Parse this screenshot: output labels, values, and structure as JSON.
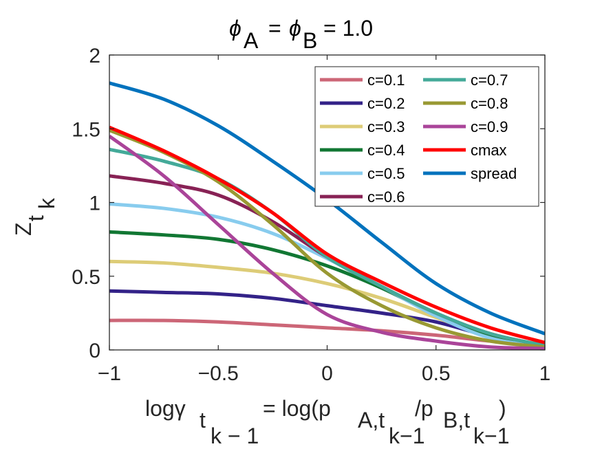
{
  "chart_data": {
    "type": "line",
    "title": {
      "symbol": "ϕ",
      "sub_a": "A",
      "eq": "=",
      "sub_b": "B",
      "value": "= 1.0"
    },
    "xlabel": {
      "part1": "logγ",
      "sub1": "t",
      "subsub1": "k − 1",
      "part2": "= log(p",
      "sub2": "A,t",
      "subsub2": "k−1",
      "part3": "/p",
      "sub3": "B,t",
      "subsub3": "k−1",
      "part4": ")"
    },
    "ylabel": {
      "main": "Z",
      "sub": "t",
      "subsub": "k"
    },
    "xlim": [
      -1,
      1
    ],
    "ylim": [
      0,
      2
    ],
    "xticks": [
      "−1",
      "−0.5",
      "0",
      "0.5",
      "1"
    ],
    "xtick_values": [
      -1,
      -0.5,
      0,
      0.5,
      1
    ],
    "yticks": [
      "0",
      "0.5",
      "1",
      "1.5",
      "2"
    ],
    "ytick_values": [
      0,
      0.5,
      1,
      1.5,
      2
    ],
    "legend_position": "top-right",
    "x": [
      -1,
      -0.75,
      -0.5,
      -0.25,
      0,
      0.25,
      0.5,
      0.75,
      1
    ],
    "series": [
      {
        "name": "c=0.1",
        "color": "#cc6677",
        "values": [
          0.2,
          0.2,
          0.19,
          0.17,
          0.15,
          0.13,
          0.1,
          0.06,
          0.03
        ]
      },
      {
        "name": "c=0.2",
        "color": "#332288",
        "values": [
          0.4,
          0.39,
          0.38,
          0.35,
          0.3,
          0.25,
          0.19,
          0.09,
          0.02
        ]
      },
      {
        "name": "c=0.3",
        "color": "#ddcc77",
        "values": [
          0.6,
          0.59,
          0.56,
          0.52,
          0.45,
          0.35,
          0.22,
          0.09,
          0.02
        ]
      },
      {
        "name": "c=0.4",
        "color": "#117733",
        "values": [
          0.8,
          0.78,
          0.75,
          0.68,
          0.57,
          0.42,
          0.24,
          0.09,
          0.02
        ]
      },
      {
        "name": "c=0.5",
        "color": "#88ccee",
        "values": [
          0.99,
          0.96,
          0.9,
          0.79,
          0.62,
          0.43,
          0.23,
          0.08,
          0.02
        ]
      },
      {
        "name": "c=0.6",
        "color": "#882255",
        "values": [
          1.18,
          1.13,
          1.05,
          0.87,
          0.63,
          0.43,
          0.25,
          0.11,
          0.03
        ]
      },
      {
        "name": "c=0.7",
        "color": "#44aa99",
        "values": [
          1.36,
          1.28,
          1.16,
          0.93,
          0.63,
          0.43,
          0.25,
          0.11,
          0.03
        ]
      },
      {
        "name": "c=0.8",
        "color": "#999933",
        "values": [
          1.49,
          1.34,
          1.14,
          0.85,
          0.52,
          0.3,
          0.15,
          0.06,
          0.02
        ]
      },
      {
        "name": "c=0.9",
        "color": "#aa4499",
        "values": [
          1.45,
          1.18,
          0.85,
          0.52,
          0.24,
          0.12,
          0.06,
          0.02,
          0.01
        ]
      },
      {
        "name": "cmax",
        "color": "#ff0000",
        "values": [
          1.51,
          1.35,
          1.16,
          0.93,
          0.65,
          0.46,
          0.29,
          0.15,
          0.05
        ]
      },
      {
        "name": "spread",
        "color": "#0072bd",
        "values": [
          1.81,
          1.7,
          1.52,
          1.28,
          1.02,
          0.73,
          0.45,
          0.25,
          0.11
        ]
      }
    ]
  }
}
